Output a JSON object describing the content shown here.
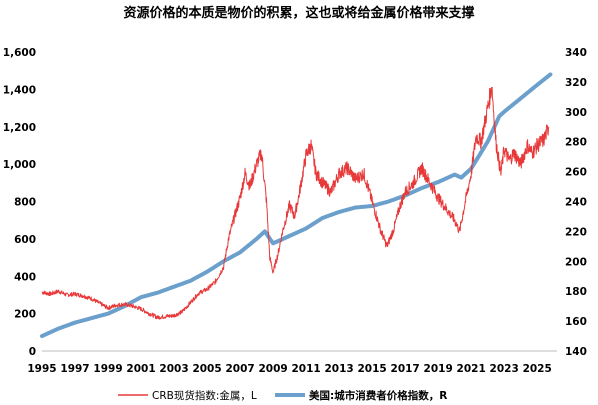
{
  "chart_data": {
    "type": "line",
    "title": "资源价格的本质是物价的积累，这也或将给金属价格带来支撑",
    "x_tick_labels": [
      "1995",
      "1997",
      "1999",
      "2001",
      "2003",
      "2005",
      "2007",
      "2009",
      "2011",
      "2013",
      "2015",
      "2017",
      "2019",
      "2021",
      "2023",
      "2025"
    ],
    "y_left": {
      "range": [
        0,
        1600
      ],
      "ticks": [
        "0",
        "200",
        "400",
        "600",
        "800",
        "1,000",
        "1,200",
        "1,400",
        "1,600"
      ]
    },
    "y_right": {
      "range": [
        140,
        340
      ],
      "ticks": [
        "140",
        "160",
        "180",
        "200",
        "220",
        "240",
        "260",
        "280",
        "300",
        "320",
        "340"
      ]
    },
    "grid": false,
    "legend_position": "bottom",
    "series": [
      {
        "name": "CRB现货指数:金属，L",
        "axis": "left",
        "color": "#e8393a",
        "points": [
          [
            1995.0,
            315
          ],
          [
            1995.5,
            305
          ],
          [
            1996.0,
            320
          ],
          [
            1996.5,
            300
          ],
          [
            1997.0,
            305
          ],
          [
            1997.5,
            295
          ],
          [
            1998.0,
            280
          ],
          [
            1998.5,
            255
          ],
          [
            1999.0,
            230
          ],
          [
            1999.5,
            245
          ],
          [
            2000.0,
            250
          ],
          [
            2000.5,
            240
          ],
          [
            2001.0,
            225
          ],
          [
            2001.5,
            200
          ],
          [
            2002.0,
            180
          ],
          [
            2002.5,
            185
          ],
          [
            2003.0,
            190
          ],
          [
            2003.5,
            210
          ],
          [
            2004.0,
            260
          ],
          [
            2004.5,
            310
          ],
          [
            2005.0,
            330
          ],
          [
            2005.5,
            370
          ],
          [
            2006.0,
            450
          ],
          [
            2006.3,
            600
          ],
          [
            2006.6,
            700
          ],
          [
            2007.0,
            820
          ],
          [
            2007.3,
            950
          ],
          [
            2007.6,
            880
          ],
          [
            2008.0,
            1000
          ],
          [
            2008.3,
            1060
          ],
          [
            2008.6,
            800
          ],
          [
            2008.8,
            500
          ],
          [
            2009.0,
            420
          ],
          [
            2009.3,
            520
          ],
          [
            2009.6,
            650
          ],
          [
            2010.0,
            780
          ],
          [
            2010.3,
            720
          ],
          [
            2010.6,
            850
          ],
          [
            2011.0,
            1050
          ],
          [
            2011.3,
            1100
          ],
          [
            2011.6,
            950
          ],
          [
            2012.0,
            900
          ],
          [
            2012.5,
            850
          ],
          [
            2013.0,
            950
          ],
          [
            2013.5,
            980
          ],
          [
            2014.0,
            920
          ],
          [
            2014.5,
            950
          ],
          [
            2015.0,
            800
          ],
          [
            2015.5,
            650
          ],
          [
            2015.9,
            560
          ],
          [
            2016.3,
            650
          ],
          [
            2016.7,
            780
          ],
          [
            2017.0,
            850
          ],
          [
            2017.5,
            900
          ],
          [
            2018.0,
            980
          ],
          [
            2018.5,
            900
          ],
          [
            2019.0,
            820
          ],
          [
            2019.5,
            760
          ],
          [
            2020.0,
            700
          ],
          [
            2020.3,
            640
          ],
          [
            2020.6,
            780
          ],
          [
            2021.0,
            950
          ],
          [
            2021.3,
            1150
          ],
          [
            2021.6,
            1120
          ],
          [
            2022.0,
            1300
          ],
          [
            2022.25,
            1420
          ],
          [
            2022.5,
            1120
          ],
          [
            2022.8,
            950
          ],
          [
            2023.0,
            1080
          ],
          [
            2023.3,
            1020
          ],
          [
            2023.6,
            1060
          ],
          [
            2024.0,
            1000
          ],
          [
            2024.4,
            1100
          ],
          [
            2024.7,
            1060
          ],
          [
            2025.0,
            1100
          ],
          [
            2025.4,
            1130
          ],
          [
            2025.7,
            1200
          ]
        ]
      },
      {
        "name": "美国:城市消费者价格指数，R",
        "axis": "right",
        "color": "#6b9fcc",
        "points": [
          [
            1995.0,
            150
          ],
          [
            1996.0,
            155
          ],
          [
            1997.0,
            159
          ],
          [
            1998.0,
            162
          ],
          [
            1999.0,
            165
          ],
          [
            2000.0,
            170
          ],
          [
            2001.0,
            176
          ],
          [
            2002.0,
            179
          ],
          [
            2003.0,
            183
          ],
          [
            2004.0,
            187
          ],
          [
            2005.0,
            193
          ],
          [
            2006.0,
            200
          ],
          [
            2007.0,
            206
          ],
          [
            2008.0,
            215
          ],
          [
            2008.5,
            220
          ],
          [
            2009.0,
            212
          ],
          [
            2010.0,
            217
          ],
          [
            2011.0,
            222
          ],
          [
            2012.0,
            229
          ],
          [
            2013.0,
            233
          ],
          [
            2014.0,
            236
          ],
          [
            2015.0,
            237
          ],
          [
            2016.0,
            240
          ],
          [
            2017.0,
            244
          ],
          [
            2018.0,
            249
          ],
          [
            2019.0,
            253
          ],
          [
            2020.0,
            258
          ],
          [
            2020.4,
            256
          ],
          [
            2021.0,
            262
          ],
          [
            2022.0,
            280
          ],
          [
            2022.7,
            297
          ],
          [
            2023.0,
            300
          ],
          [
            2024.0,
            309
          ],
          [
            2025.0,
            318
          ],
          [
            2025.8,
            325
          ]
        ]
      }
    ]
  }
}
